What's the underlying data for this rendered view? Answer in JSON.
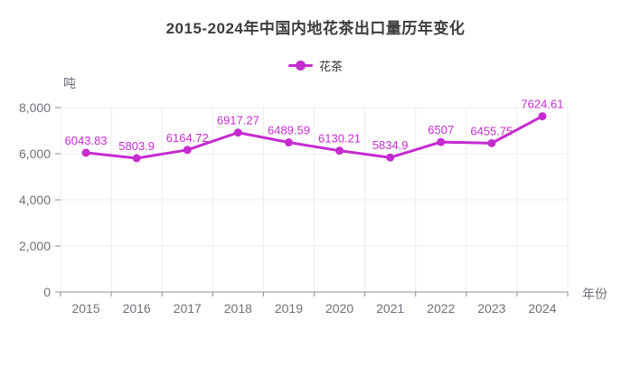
{
  "header": {
    "title": "2015-2024年中国内地花茶出口量历年变化"
  },
  "legend": {
    "items": [
      {
        "label": "花茶"
      }
    ]
  },
  "chart_data": {
    "type": "line",
    "title": "2015-2024年中国内地花茶出口量历年变化",
    "categories": [
      "2015",
      "2016",
      "2017",
      "2018",
      "2019",
      "2020",
      "2021",
      "2022",
      "2023",
      "2024"
    ],
    "series": [
      {
        "name": "花茶",
        "values": [
          6043.83,
          5803.9,
          6164.72,
          6917.27,
          6489.59,
          6130.21,
          5834.9,
          6507,
          6455.75,
          7624.61
        ],
        "color": "#c52ccf"
      }
    ],
    "xlabel": "年份",
    "ylabel": "吨",
    "ylim": [
      0,
      8000
    ],
    "yticks": [
      0,
      2000,
      4000,
      6000,
      8000
    ],
    "grid": true,
    "legend_position": "top",
    "data_labels": true
  },
  "colors": {
    "accent": "#c52ccf",
    "title_text": "#3d3d3d",
    "axis_text": "#6e7079",
    "axis_line": "#8b9097",
    "grid_line": "#ececf1",
    "background": "#ffffff"
  }
}
